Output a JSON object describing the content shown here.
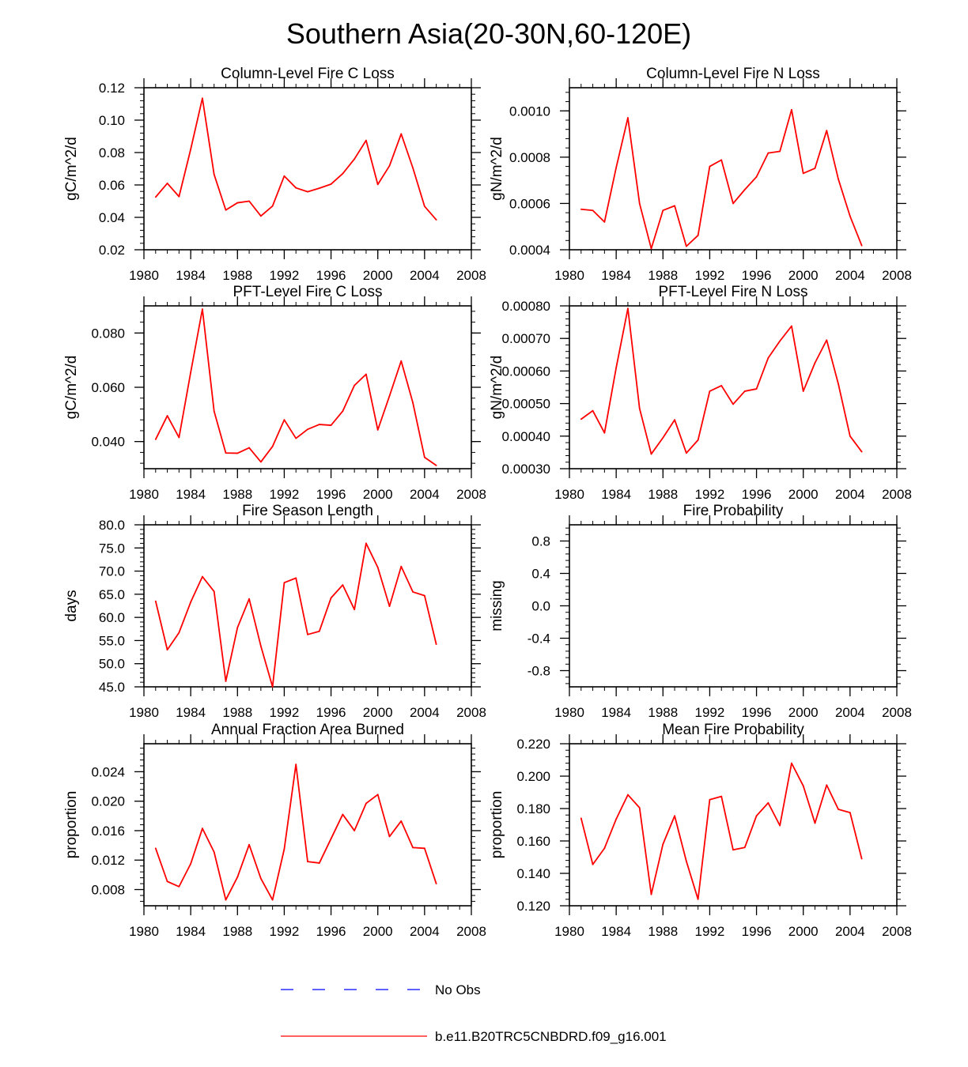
{
  "title": "Southern Asia(20-30N,60-120E)",
  "colors": {
    "model": "#ff0000",
    "obs": "#0000ff",
    "axis": "#000000"
  },
  "legend": {
    "obs_label": "No Obs",
    "model_label": "b.e11.B20TRC5CNBDRD.f09_g16.001"
  },
  "chart_data": [
    {
      "type": "line",
      "title": "Column-Level Fire C Loss",
      "ylabel": "gC/m^2/d",
      "xlim": [
        1980,
        2008
      ],
      "ylim": [
        0.02,
        0.12
      ],
      "xticks": [
        "1980",
        "1984",
        "1988",
        "1992",
        "1996",
        "2000",
        "2004",
        "2008"
      ],
      "yticks": [
        "0.02",
        "0.04",
        "0.06",
        "0.08",
        "0.10",
        "0.12"
      ],
      "x": [
        1981,
        1982,
        1983,
        1984,
        1985,
        1986,
        1987,
        1988,
        1989,
        1990,
        1991,
        1992,
        1993,
        1994,
        1995,
        1996,
        1997,
        1998,
        1999,
        2000,
        2001,
        2002,
        2003,
        2004,
        2005
      ],
      "series": [
        {
          "name": "b.e11.B20TRC5CNBDRD.f09_g16.001",
          "values": [
            0.0525,
            0.061,
            0.0528,
            0.082,
            0.1135,
            0.0665,
            0.0445,
            0.049,
            0.05,
            0.0408,
            0.047,
            0.0655,
            0.0582,
            0.0558,
            0.058,
            0.0605,
            0.067,
            0.076,
            0.0875,
            0.0603,
            0.0718,
            0.0915,
            0.0705,
            0.0468,
            0.0385
          ]
        }
      ]
    },
    {
      "type": "line",
      "title": "Column-Level Fire N Loss",
      "ylabel": "gN/m^2/d",
      "xlim": [
        1980,
        2008
      ],
      "ylim": [
        0.0004,
        0.0011
      ],
      "xticks": [
        "1980",
        "1984",
        "1988",
        "1992",
        "1996",
        "2000",
        "2004",
        "2008"
      ],
      "yticks": [
        "0.0004",
        "0.0006",
        "0.0008",
        "0.0010"
      ],
      "x": [
        1981,
        1982,
        1983,
        1984,
        1985,
        1986,
        1987,
        1988,
        1989,
        1990,
        1991,
        1992,
        1993,
        1994,
        1995,
        1996,
        1997,
        1998,
        1999,
        2000,
        2001,
        2002,
        2003,
        2004,
        2005
      ],
      "series": [
        {
          "name": "b.e11.B20TRC5CNBDRD.f09_g16.001",
          "values": [
            0.000575,
            0.00057,
            0.00052,
            0.000755,
            0.00097,
            0.0006,
            0.000405,
            0.00057,
            0.00059,
            0.000415,
            0.000462,
            0.00076,
            0.000788,
            0.0006,
            0.00066,
            0.000715,
            0.000818,
            0.000825,
            0.001005,
            0.00073,
            0.000752,
            0.000915,
            0.000705,
            0.000545,
            0.000418
          ]
        }
      ]
    },
    {
      "type": "line",
      "title": "PFT-Level Fire C Loss",
      "ylabel": "gC/m^2/d",
      "xlim": [
        1980,
        2008
      ],
      "ylim": [
        0.03,
        0.09
      ],
      "xticks": [
        "1980",
        "1984",
        "1988",
        "1992",
        "1996",
        "2000",
        "2004",
        "2008"
      ],
      "yticks": [
        "0.040",
        "0.060",
        "0.080"
      ],
      "x": [
        1981,
        1982,
        1983,
        1984,
        1985,
        1986,
        1987,
        1988,
        1989,
        1990,
        1991,
        1992,
        1993,
        1994,
        1995,
        1996,
        1997,
        1998,
        1999,
        2000,
        2001,
        2002,
        2003,
        2004,
        2005
      ],
      "series": [
        {
          "name": "b.e11.B20TRC5CNBDRD.f09_g16.001",
          "values": [
            0.0408,
            0.0495,
            0.0415,
            0.0655,
            0.0888,
            0.0512,
            0.0358,
            0.0357,
            0.0377,
            0.0325,
            0.0382,
            0.048,
            0.0412,
            0.0445,
            0.0463,
            0.046,
            0.0512,
            0.0607,
            0.0648,
            0.0443,
            0.0568,
            0.0697,
            0.0543,
            0.0342,
            0.0312
          ]
        }
      ]
    },
    {
      "type": "line",
      "title": "PFT-Level Fire N Loss",
      "ylabel": "gN/m^2/d",
      "xlim": [
        1980,
        2008
      ],
      "ylim": [
        0.0003,
        0.0008
      ],
      "xticks": [
        "1980",
        "1984",
        "1988",
        "1992",
        "1996",
        "2000",
        "2004",
        "2008"
      ],
      "yticks": [
        "0.00030",
        "0.00040",
        "0.00050",
        "0.00060",
        "0.00070",
        "0.00080"
      ],
      "x": [
        1981,
        1982,
        1983,
        1984,
        1985,
        1986,
        1987,
        1988,
        1989,
        1990,
        1991,
        1992,
        1993,
        1994,
        1995,
        1996,
        1997,
        1998,
        1999,
        2000,
        2001,
        2002,
        2003,
        2004,
        2005
      ],
      "series": [
        {
          "name": "b.e11.B20TRC5CNBDRD.f09_g16.001",
          "values": [
            0.000452,
            0.000478,
            0.00041,
            0.00061,
            0.000792,
            0.000485,
            0.000345,
            0.000395,
            0.00045,
            0.000348,
            0.000388,
            0.000538,
            0.000555,
            0.000498,
            0.000538,
            0.000545,
            0.00064,
            0.000692,
            0.000738,
            0.000538,
            0.000625,
            0.000695,
            0.00056,
            0.0004,
            0.000352
          ]
        }
      ]
    },
    {
      "type": "line",
      "title": "Fire Season Length",
      "ylabel": "days",
      "xlim": [
        1980,
        2008
      ],
      "ylim": [
        45.0,
        80.0
      ],
      "xticks": [
        "1980",
        "1984",
        "1988",
        "1992",
        "1996",
        "2000",
        "2004",
        "2008"
      ],
      "yticks": [
        "45.0",
        "50.0",
        "55.0",
        "60.0",
        "65.0",
        "70.0",
        "75.0",
        "80.0"
      ],
      "x": [
        1981,
        1982,
        1983,
        1984,
        1985,
        1986,
        1987,
        1988,
        1989,
        1990,
        1991,
        1992,
        1993,
        1994,
        1995,
        1996,
        1997,
        1998,
        1999,
        2000,
        2001,
        2002,
        2003,
        2004,
        2005
      ],
      "series": [
        {
          "name": "b.e11.B20TRC5CNBDRD.f09_g16.001",
          "values": [
            63.5,
            53.0,
            56.7,
            63.3,
            68.8,
            65.6,
            46.2,
            57.8,
            64.0,
            53.8,
            45.0,
            67.5,
            68.5,
            56.3,
            57.0,
            64.2,
            67.0,
            61.7,
            76.0,
            70.8,
            62.4,
            71.0,
            65.5,
            64.7,
            54.2
          ]
        }
      ]
    },
    {
      "type": "line",
      "title": "Fire Probability",
      "ylabel": "missing",
      "xlim": [
        1980,
        2008
      ],
      "ylim": [
        -1.0,
        1.0
      ],
      "xticks": [
        "1980",
        "1984",
        "1988",
        "1992",
        "1996",
        "2000",
        "2004",
        "2008"
      ],
      "yticks": [
        "-0.8",
        "-0.4",
        "0.0",
        "0.4",
        "0.8"
      ],
      "x": [],
      "series": []
    },
    {
      "type": "line",
      "title": "Annual Fraction Area Burned",
      "ylabel": "proportion",
      "xlim": [
        1980,
        2008
      ],
      "ylim": [
        0.0058,
        0.0278
      ],
      "xticks": [
        "1980",
        "1984",
        "1988",
        "1992",
        "1996",
        "2000",
        "2004",
        "2008"
      ],
      "yticks": [
        "0.008",
        "0.012",
        "0.016",
        "0.020",
        "0.024"
      ],
      "x": [
        1981,
        1982,
        1983,
        1984,
        1985,
        1986,
        1987,
        1988,
        1989,
        1990,
        1991,
        1992,
        1993,
        1994,
        1995,
        1996,
        1997,
        1998,
        1999,
        2000,
        2001,
        2002,
        2003,
        2004,
        2005
      ],
      "series": [
        {
          "name": "b.e11.B20TRC5CNBDRD.f09_g16.001",
          "values": [
            0.0136,
            0.0091,
            0.0084,
            0.0115,
            0.0163,
            0.0131,
            0.0066,
            0.0097,
            0.0141,
            0.0095,
            0.0066,
            0.0135,
            0.025,
            0.0118,
            0.0116,
            0.0149,
            0.0182,
            0.016,
            0.0197,
            0.0209,
            0.0152,
            0.0173,
            0.0137,
            0.0136,
            0.0088
          ]
        }
      ]
    },
    {
      "type": "line",
      "title": "Mean Fire Probability",
      "ylabel": "proportion",
      "xlim": [
        1980,
        2008
      ],
      "ylim": [
        0.12,
        0.22
      ],
      "xticks": [
        "1980",
        "1984",
        "1988",
        "1992",
        "1996",
        "2000",
        "2004",
        "2008"
      ],
      "yticks": [
        "0.120",
        "0.140",
        "0.160",
        "0.180",
        "0.200",
        "0.220"
      ],
      "x": [
        1981,
        1982,
        1983,
        1984,
        1985,
        1986,
        1987,
        1988,
        1989,
        1990,
        1991,
        1992,
        1993,
        1994,
        1995,
        1996,
        1997,
        1998,
        1999,
        2000,
        2001,
        2002,
        2003,
        2004,
        2005
      ],
      "series": [
        {
          "name": "b.e11.B20TRC5CNBDRD.f09_g16.001",
          "values": [
            0.174,
            0.1455,
            0.1555,
            0.1735,
            0.1885,
            0.1805,
            0.127,
            0.158,
            0.1755,
            0.1475,
            0.124,
            0.1855,
            0.1875,
            0.1545,
            0.156,
            0.1755,
            0.1835,
            0.1695,
            0.208,
            0.194,
            0.171,
            0.1945,
            0.1795,
            0.1775,
            0.149
          ]
        }
      ]
    }
  ]
}
